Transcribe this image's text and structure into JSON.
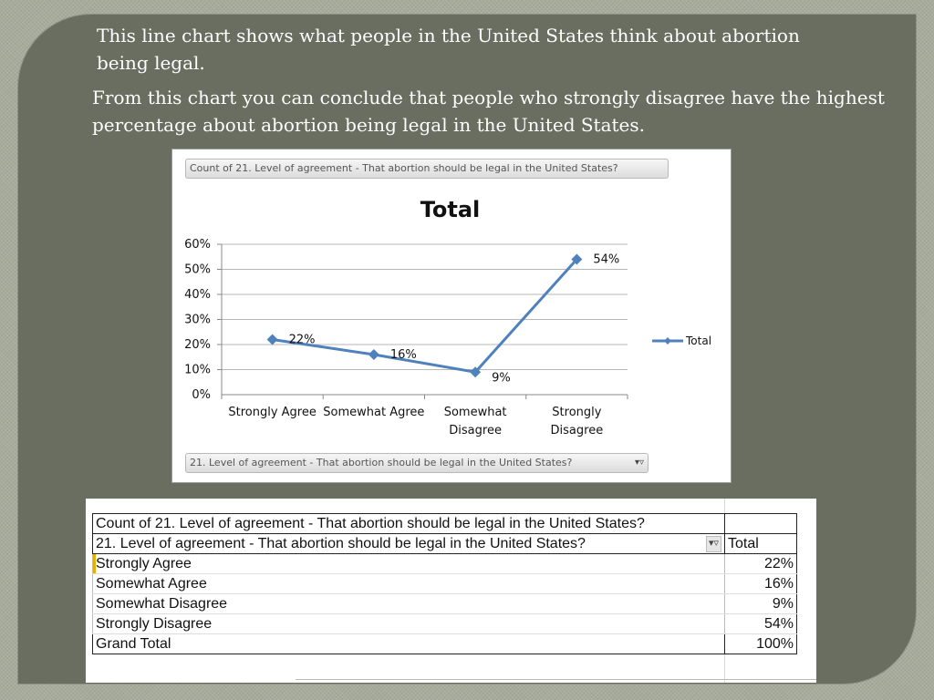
{
  "slide": {
    "paragraph_1": "This line chart shows what people in the United States think about abortion being legal.",
    "paragraph_2": "From this chart you can conclude that people who strongly disagree have the highest percentage about abortion being legal in the United States."
  },
  "chart_data": {
    "type": "line",
    "title": "Total",
    "categories": [
      "Strongly Agree",
      "Somewhat Agree",
      "Somewhat Disagree",
      "Strongly Disagree"
    ],
    "series": [
      {
        "name": "Total",
        "values": [
          22,
          16,
          9,
          54
        ],
        "color": "#4f81bd"
      }
    ],
    "data_labels": [
      "22%",
      "16%",
      "9%",
      "54%"
    ],
    "y_ticks": [
      "0%",
      "10%",
      "20%",
      "30%",
      "40%",
      "50%",
      "60%"
    ],
    "ylim": [
      0,
      60
    ],
    "grid": true,
    "legend": "right",
    "field_top": "Count of 21. Level of agreement - That abortion should be legal in the United States?",
    "field_bottom": "21. Level of agreement - That abortion should be legal in the United States?"
  },
  "pivot_table": {
    "header_1": "Count of 21. Level of agreement - That abortion should be legal in the United States?",
    "header_2": "21. Level of agreement - That abortion should be legal in the United States?",
    "header_total": "Total",
    "rows": [
      {
        "label": "Strongly Agree",
        "value": "22%"
      },
      {
        "label": "Somewhat Agree",
        "value": "16%"
      },
      {
        "label": "Somewhat Disagree",
        "value": "9%"
      },
      {
        "label": "Strongly Disagree",
        "value": "54%"
      }
    ],
    "grand_total_label": "Grand Total",
    "grand_total_value": "100%"
  }
}
